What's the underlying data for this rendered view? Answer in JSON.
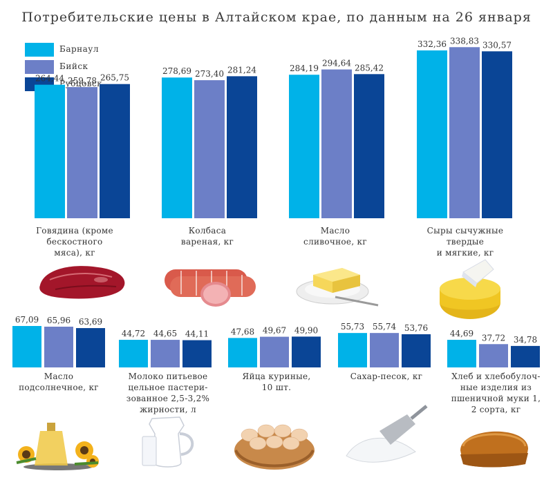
{
  "title": "Потребительские цены в Алтайском крае, по данным на 26 января",
  "colors": {
    "barnaul": "#00b2e8",
    "biysk": "#6c7fc7",
    "rubtsovsk": "#0a4596"
  },
  "legend": [
    {
      "label": "Барнаул",
      "color": "#00b2e8"
    },
    {
      "label": "Бийск",
      "color": "#6c7fc7"
    },
    {
      "label": "Рубцовск",
      "color": "#0a4596"
    }
  ],
  "chart_data": {
    "type": "bar",
    "series_names": [
      "Барнаул",
      "Бийск",
      "Рубцовск"
    ],
    "groups": [
      {
        "label": "Говядина (кроме бесконостного мяса), кг",
        "values": [
          264.44,
          259.78,
          265.75
        ],
        "value_labels": [
          "264,44",
          "259,78",
          "265,75"
        ]
      },
      {
        "label": "Колбаса вареная, кг",
        "values": [
          278.69,
          273.4,
          281.24
        ],
        "value_labels": [
          "278,69",
          "273,40",
          "281,24"
        ]
      },
      {
        "label": "Масло сливочное, кг",
        "values": [
          284.19,
          294.64,
          285.42
        ],
        "value_labels": [
          "284,19",
          "294,64",
          "285,42"
        ]
      },
      {
        "label": "Сыры сычужные твердые и мягкие, кг",
        "values": [
          332.36,
          338.83,
          330.57
        ],
        "value_labels": [
          "332,36",
          "338,83",
          "330,57"
        ]
      },
      {
        "label": "Масло подсолнечное, кг",
        "values": [
          67.09,
          65.96,
          63.69
        ],
        "value_labels": [
          "67,09",
          "65,96",
          "63,69"
        ]
      },
      {
        "label": "Молоко питьевое цельное пастеризованное 2,5-3,2% жирности, л",
        "values": [
          44.72,
          44.65,
          44.11
        ],
        "value_labels": [
          "44,72",
          "44,65",
          "44,11"
        ]
      },
      {
        "label": "Яйца куриные, 10 шт.",
        "values": [
          47.68,
          49.67,
          49.9
        ],
        "value_labels": [
          "47,68",
          "49,67",
          "49,90"
        ]
      },
      {
        "label": "Сахар-песок, кг",
        "values": [
          55.73,
          55.74,
          53.76
        ],
        "value_labels": [
          "55,73",
          "55,74",
          "53,76"
        ]
      },
      {
        "label": "Хлеб и хлебобулочные изделия из пшеничной муки 1, 2 сорта, кг",
        "values": [
          44.69,
          37.72,
          34.78
        ],
        "value_labels": [
          "44,69",
          "37,72",
          "34,78"
        ]
      }
    ]
  },
  "category_labels": [
    [
      "Говядина (кроме",
      "бескостного",
      "мяса), кг"
    ],
    [
      "Колбаса",
      "вареная, кг"
    ],
    [
      "Масло",
      "сливочное, кг"
    ],
    [
      "Сыры сычужные",
      "твердые",
      "и мягкие, кг"
    ],
    [
      "Масло",
      "подсолнечное, кг"
    ],
    [
      "Молоко питьевое",
      "цельное пастери-",
      "зованное 2,5-3,2%",
      "жирности, л"
    ],
    [
      "Яйца куриные,",
      "10 шт."
    ],
    [
      "Сахар-песок, кг"
    ],
    [
      "Хлеб и хлебобулоч-",
      "ные изделия из",
      "пшеничной муки 1,",
      "2 сорта, кг"
    ]
  ],
  "illustrations": [
    "beef-image",
    "sausage-image",
    "butter-image",
    "cheese-image",
    "sunflower-oil-image",
    "milk-jug-image",
    "eggs-basket-image",
    "sugar-scoop-image",
    "bread-loaf-image"
  ]
}
